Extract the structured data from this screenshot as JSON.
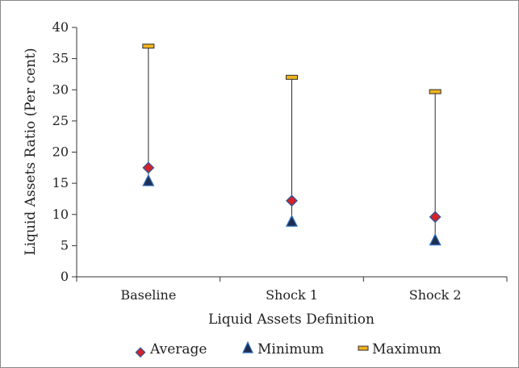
{
  "chart_data": {
    "type": "scatter",
    "title": "",
    "xlabel": "Liquid Assets Definition",
    "ylabel": "Liquid Assets Ratio (Per cent)",
    "categories": [
      "Baseline",
      "Shock 1",
      "Shock 2"
    ],
    "ylim": [
      0,
      40
    ],
    "yticks": [
      0,
      5,
      10,
      15,
      20,
      25,
      30,
      35,
      40
    ],
    "grid": false,
    "legend_position": "bottom",
    "series": [
      {
        "name": "Average",
        "marker": "diamond",
        "color": "#d2232a",
        "stroke": "#2f5597",
        "values": [
          17.5,
          12.2,
          9.6
        ]
      },
      {
        "name": "Minimum",
        "marker": "triangle",
        "color": "#1f2d4d",
        "stroke": "#2f6fc0",
        "values": [
          15.4,
          8.9,
          5.9
        ]
      },
      {
        "name": "Maximum",
        "marker": "dash",
        "color": "#f2b41e",
        "stroke": "#2b2b2b",
        "values": [
          37.0,
          32.0,
          29.7
        ]
      }
    ],
    "range_line_color": "#2b2b2b"
  }
}
